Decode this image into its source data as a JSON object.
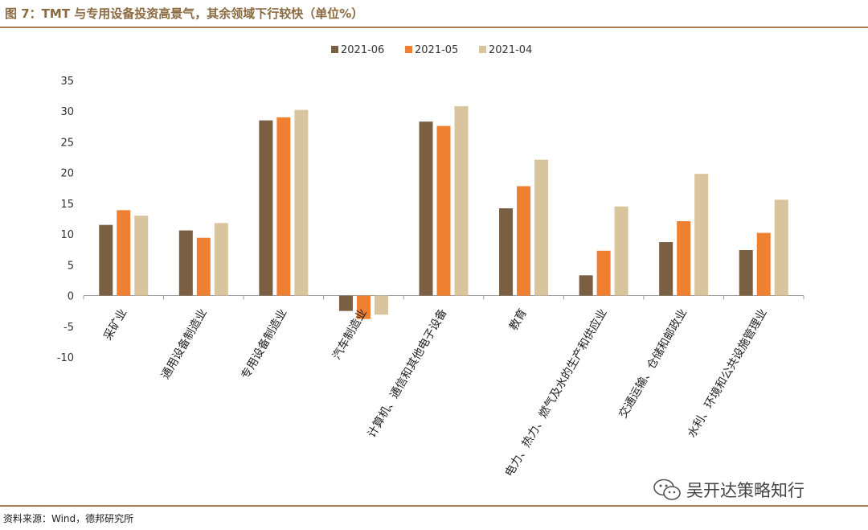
{
  "header": {
    "title": "图 7：TMT 与专用设备投资高景气，其余领域下行较快（单位%）"
  },
  "footer": {
    "source": "资料来源：Wind，德邦研究所"
  },
  "watermark": {
    "text": "吴开达策略知行",
    "icon": "wechat-icon"
  },
  "colors": {
    "accent": "#a88052",
    "s2021_06": "#7b5f43",
    "s2021_05": "#ef7f31",
    "s2021_04": "#d8c59e"
  },
  "chart_data": {
    "type": "bar",
    "title": "",
    "xlabel": "",
    "ylabel": "",
    "ylim": [
      -10,
      35
    ],
    "yticks": [
      35,
      30,
      25,
      20,
      15,
      10,
      5,
      0,
      -5,
      -10
    ],
    "grid": false,
    "legend": "top-center",
    "categories": [
      "采矿业",
      "通用设备制造业",
      "专用设备制造业",
      "汽车制造业",
      "计算机、通信和其他电子设备",
      "教育",
      "电力、热力、燃气及水的生产和供应业",
      "交通运输、仓储和邮政业",
      "水利、环境和公共设施管理业"
    ],
    "series": [
      {
        "name": "2021-06",
        "color": "#7b5f43",
        "values": [
          11.5,
          10.6,
          28.5,
          -2.5,
          28.3,
          14.2,
          3.3,
          8.7,
          7.4
        ]
      },
      {
        "name": "2021-05",
        "color": "#ef7f31",
        "values": [
          13.9,
          9.4,
          29.0,
          -3.8,
          27.6,
          17.8,
          7.3,
          12.1,
          10.2
        ]
      },
      {
        "name": "2021-04",
        "color": "#d8c59e",
        "values": [
          13.0,
          11.8,
          30.2,
          -3.1,
          30.8,
          22.1,
          14.5,
          19.8,
          15.6
        ]
      }
    ]
  }
}
